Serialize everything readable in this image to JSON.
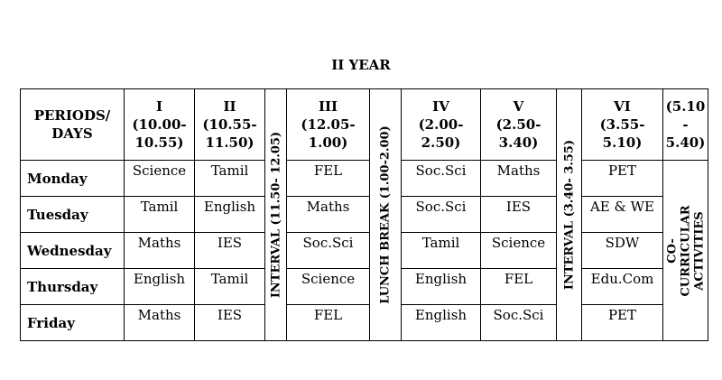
{
  "page_title": "II YEAR",
  "header": {
    "label": "PERIODS/ DAYS",
    "periods": [
      {
        "num": "I",
        "time": "(10.00- 10.55)"
      },
      {
        "num": "II",
        "time": "(10.55- 11.50)"
      },
      {
        "num": "III",
        "time": "(12.05- 1.00)"
      },
      {
        "num": "IV",
        "time": "(2.00- 2.50)"
      },
      {
        "num": "V",
        "time": "(2.50- 3.40)"
      },
      {
        "num": "VI",
        "time": "(3.55- 5.10)"
      },
      {
        "num": "",
        "time": "(5.10 - 5.40)"
      }
    ]
  },
  "breaks": {
    "interval1": "INTERVAL (11.50- 12.05)",
    "lunch": "LUNCH BREAK (1.00-2.00)",
    "interval2": "INTERVAL (3.40- 3.55)",
    "activities": "CO-CURRICULAR ACTIVITIES"
  },
  "rows": [
    {
      "day": "Monday",
      "p1": "Science",
      "p2": "Tamil",
      "p3": "FEL",
      "p4": "Soc.Sci",
      "p5": "Maths",
      "p6": "PET"
    },
    {
      "day": "Tuesday",
      "p1": "Tamil",
      "p2": "English",
      "p3": "Maths",
      "p4": "Soc.Sci",
      "p5": "IES",
      "p6": "AE & WE"
    },
    {
      "day": "Wednesday",
      "p1": "Maths",
      "p2": "IES",
      "p3": "Soc.Sci",
      "p4": "Tamil",
      "p5": "Science",
      "p6": "SDW"
    },
    {
      "day": "Thursday",
      "p1": "English",
      "p2": "Tamil",
      "p3": "Science",
      "p4": "English",
      "p5": "FEL",
      "p6": "Edu.Com"
    },
    {
      "day": "Friday",
      "p1": "Maths",
      "p2": "IES",
      "p3": "FEL",
      "p4": "English",
      "p5": "Soc.Sci",
      "p6": "PET"
    }
  ]
}
